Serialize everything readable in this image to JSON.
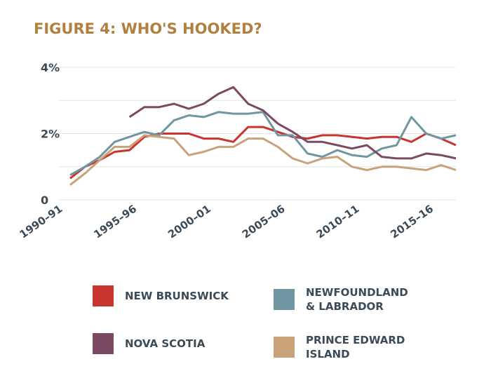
{
  "chart_data": {
    "type": "line",
    "title": "FIGURE 4: WHO'S HOOKED?",
    "categories": [
      "1990–91",
      null,
      null,
      null,
      null,
      "1995–96",
      null,
      null,
      null,
      null,
      "2000–01",
      null,
      null,
      null,
      null,
      "2005–06",
      null,
      null,
      null,
      null,
      "2010–11",
      null,
      null,
      null,
      null,
      "2015–16",
      null
    ],
    "series": [
      {
        "name": "NEW BRUNSWICK",
        "color": "#c8352e",
        "values": [
          0.65,
          1.0,
          1.2,
          1.45,
          1.5,
          1.9,
          2.0,
          2.0,
          2.0,
          1.85,
          1.85,
          1.75,
          2.2,
          2.2,
          2.05,
          1.9,
          1.85,
          1.95,
          1.95,
          1.9,
          1.85,
          1.9,
          1.9,
          1.75,
          2.0,
          1.85,
          1.65
        ]
      },
      {
        "name": "NEWFOUNDLAND & LABRADOR",
        "color": "#6f96a1",
        "values": [
          0.75,
          1.0,
          1.3,
          1.75,
          1.9,
          2.05,
          1.95,
          2.4,
          2.55,
          2.5,
          2.65,
          2.6,
          2.6,
          2.65,
          1.95,
          1.95,
          1.4,
          1.3,
          1.5,
          1.35,
          1.3,
          1.55,
          1.65,
          2.5,
          2.0,
          1.85,
          1.95
        ]
      },
      {
        "name": "NOVA SCOTIA",
        "color": "#7b4a62",
        "values": [
          null,
          null,
          null,
          null,
          2.5,
          2.8,
          2.8,
          2.9,
          2.75,
          2.9,
          3.2,
          3.4,
          2.9,
          2.7,
          2.3,
          2.05,
          1.75,
          1.75,
          1.65,
          1.55,
          1.65,
          1.3,
          1.25,
          1.25,
          1.4,
          1.35,
          1.25
        ]
      },
      {
        "name": "PRINCE EDWARD ISLAND",
        "color": "#c9a27a",
        "values": [
          0.45,
          0.8,
          1.2,
          1.6,
          1.6,
          1.95,
          1.9,
          1.85,
          1.35,
          1.45,
          1.6,
          1.6,
          1.85,
          1.85,
          1.6,
          1.25,
          1.1,
          1.25,
          1.3,
          1.0,
          0.9,
          1.0,
          1.0,
          0.95,
          0.9,
          1.05,
          0.9
        ]
      }
    ],
    "ylim": [
      0,
      4
    ],
    "yticks": [
      0,
      {
        "value": 2,
        "label": "2%"
      },
      {
        "value": 4,
        "label": "4%"
      }
    ],
    "minor_yticks": [
      1,
      3
    ],
    "grid": true
  }
}
